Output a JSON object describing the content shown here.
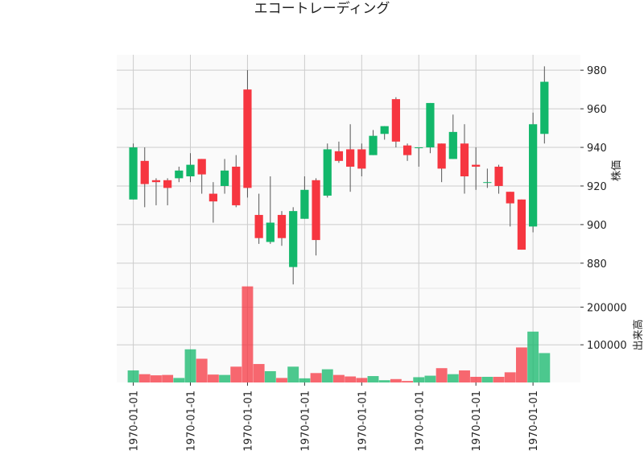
{
  "chart_data": {
    "type": "candlestick",
    "title": "エコートレーディング",
    "up_color": "#12b76a",
    "down_color": "#f63640",
    "price_axis": {
      "label": "株価",
      "ticks": [
        880,
        900,
        920,
        940,
        960,
        980
      ],
      "ylim": [
        867,
        988
      ]
    },
    "volume_axis": {
      "label": "出来高",
      "ticks": [
        100000,
        200000
      ],
      "tick_labels": [
        "100000",
        "200000"
      ],
      "ylim": [
        0,
        250000
      ]
    },
    "x_tick_labels": [
      "1970-01-01",
      "1970-01-01",
      "1970-01-01",
      "1970-01-01",
      "1970-01-01",
      "1970-01-01",
      "1970-01-01",
      "1970-01-01"
    ],
    "x_tick_indices": [
      0,
      5,
      10,
      15,
      20,
      25,
      30,
      35
    ],
    "candles": [
      {
        "open": 913,
        "high": 942,
        "low": 913,
        "close": 940,
        "volume": 32000
      },
      {
        "open": 933,
        "high": 940,
        "low": 909,
        "close": 921,
        "volume": 22000
      },
      {
        "open": 923,
        "high": 924,
        "low": 910,
        "close": 922,
        "volume": 19000
      },
      {
        "open": 923,
        "high": 924,
        "low": 910,
        "close": 919,
        "volume": 20000
      },
      {
        "open": 924,
        "high": 930,
        "low": 922,
        "close": 928,
        "volume": 12000
      },
      {
        "open": 925,
        "high": 937,
        "low": 922,
        "close": 931,
        "volume": 88000
      },
      {
        "open": 934,
        "high": 934,
        "low": 916,
        "close": 926,
        "volume": 63000
      },
      {
        "open": 916,
        "high": 922,
        "low": 901,
        "close": 912,
        "volume": 21000
      },
      {
        "open": 920,
        "high": 934,
        "low": 916,
        "close": 928,
        "volume": 20000
      },
      {
        "open": 930,
        "high": 936,
        "low": 909,
        "close": 910,
        "volume": 42000
      },
      {
        "open": 970,
        "high": 980,
        "low": 914,
        "close": 919,
        "volume": 255000
      },
      {
        "open": 905,
        "high": 916,
        "low": 890,
        "close": 893,
        "volume": 49000
      },
      {
        "open": 891,
        "high": 925,
        "low": 890,
        "close": 901,
        "volume": 30000
      },
      {
        "open": 905,
        "high": 907,
        "low": 889,
        "close": 893,
        "volume": 12000
      },
      {
        "open": 878,
        "high": 909,
        "low": 869,
        "close": 907,
        "volume": 42000
      },
      {
        "open": 903,
        "high": 925,
        "low": 903,
        "close": 918,
        "volume": 11000
      },
      {
        "open": 923,
        "high": 924,
        "low": 884,
        "close": 892,
        "volume": 25000
      },
      {
        "open": 915,
        "high": 942,
        "low": 914,
        "close": 939,
        "volume": 35000
      },
      {
        "open": 938,
        "high": 943,
        "low": 932,
        "close": 933,
        "volume": 20000
      },
      {
        "open": 939,
        "high": 952,
        "low": 917,
        "close": 930,
        "volume": 16000
      },
      {
        "open": 939,
        "high": 942,
        "low": 925,
        "close": 929,
        "volume": 12000
      },
      {
        "open": 936,
        "high": 949,
        "low": 936,
        "close": 946,
        "volume": 17000
      },
      {
        "open": 947,
        "high": 951,
        "low": 944,
        "close": 951,
        "volume": 6000
      },
      {
        "open": 965,
        "high": 966,
        "low": 940,
        "close": 943,
        "volume": 9000
      },
      {
        "open": 941,
        "high": 942,
        "low": 933,
        "close": 936,
        "volume": 4000
      },
      {
        "open": 940,
        "high": 940,
        "low": 930,
        "close": 940,
        "volume": 14000
      },
      {
        "open": 940,
        "high": 963,
        "low": 937,
        "close": 963,
        "volume": 18000
      },
      {
        "open": 942,
        "high": 942,
        "low": 922,
        "close": 929,
        "volume": 38000
      },
      {
        "open": 934,
        "high": 957,
        "low": 934,
        "close": 948,
        "volume": 22000
      },
      {
        "open": 942,
        "high": 952,
        "low": 916,
        "close": 925,
        "volume": 32000
      },
      {
        "open": 931,
        "high": 940,
        "low": 918,
        "close": 930,
        "volume": 15000
      },
      {
        "open": 922,
        "high": 929,
        "low": 919,
        "close": 922,
        "volume": 15000
      },
      {
        "open": 930,
        "high": 931,
        "low": 916,
        "close": 920,
        "volume": 15000
      },
      {
        "open": 917,
        "high": 917,
        "low": 899,
        "close": 911,
        "volume": 27000
      },
      {
        "open": 913,
        "high": 913,
        "low": 887,
        "close": 887,
        "volume": 93000
      },
      {
        "open": 899,
        "high": 958,
        "low": 896,
        "close": 952,
        "volume": 135000
      },
      {
        "open": 947,
        "high": 982,
        "low": 942,
        "close": 974,
        "volume": 78000
      }
    ]
  }
}
